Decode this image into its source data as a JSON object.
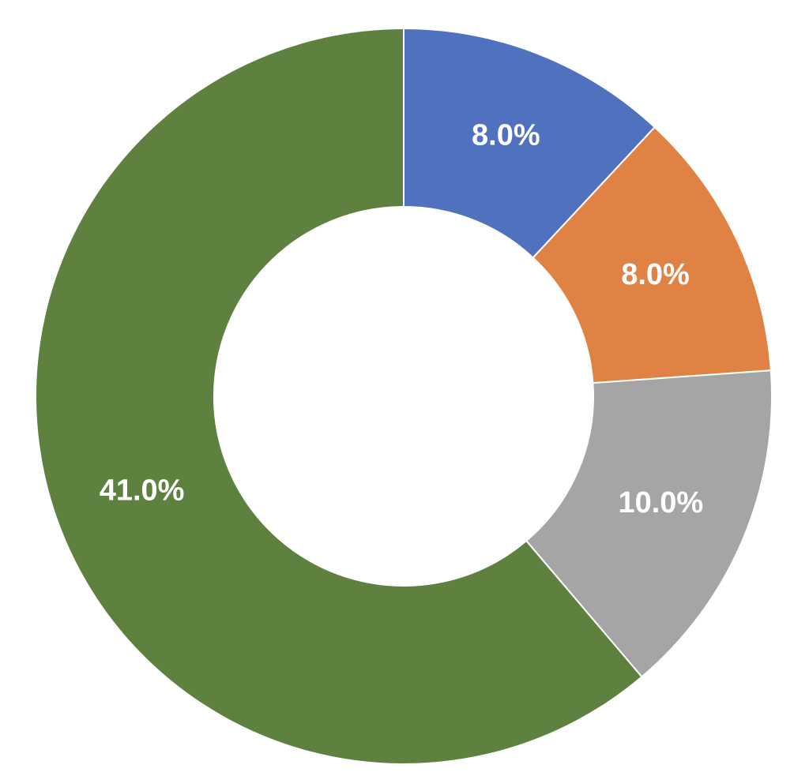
{
  "chart_data": {
    "type": "donut",
    "values": [
      8.0,
      8.0,
      10.0,
      41.0
    ],
    "value_labels": [
      "8.0%",
      "8.0%",
      "10.0%",
      "41.0%"
    ],
    "colors": [
      "#4f71be",
      "#e08244",
      "#a5a5a5",
      "#5f813f"
    ]
  }
}
